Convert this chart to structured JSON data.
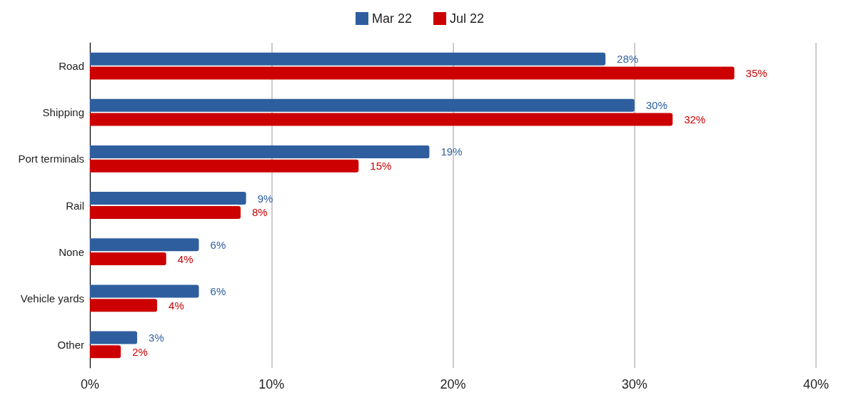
{
  "chart_data": {
    "type": "bar",
    "orientation": "horizontal",
    "categories": [
      "Road",
      "Shipping",
      "Port terminals",
      "Rail",
      "None",
      "Vehicle yards",
      "Other"
    ],
    "series": [
      {
        "name": "Mar 22",
        "color": "#2e5e9e",
        "values": [
          28.4,
          30.0,
          18.7,
          8.6,
          6.0,
          6.0,
          2.6
        ],
        "value_labels": [
          "28%",
          "30%",
          "19%",
          "9%",
          "6%",
          "6%",
          "3%"
        ]
      },
      {
        "name": "Jul 22",
        "color": "#cc0000",
        "values": [
          35.5,
          32.1,
          14.8,
          8.3,
          4.2,
          3.7,
          1.7
        ],
        "value_labels": [
          "35%",
          "32%",
          "15%",
          "8%",
          "4%",
          "4%",
          "2%"
        ]
      }
    ],
    "xlim": [
      0,
      40
    ],
    "xticks": [
      {
        "value": 0,
        "label": "0%"
      },
      {
        "value": 10,
        "label": "10%"
      },
      {
        "value": 20,
        "label": "20%"
      },
      {
        "value": 30,
        "label": "30%"
      },
      {
        "value": 40,
        "label": "40%"
      }
    ],
    "grid": "x",
    "legend": "top"
  }
}
